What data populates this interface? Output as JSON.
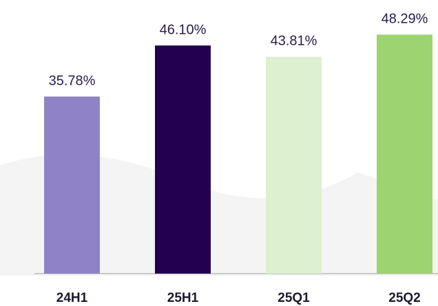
{
  "chart_data": {
    "type": "bar",
    "categories": [
      "24H1",
      "25H1",
      "25Q1",
      "25Q2"
    ],
    "values": [
      35.78,
      46.1,
      43.81,
      48.29
    ],
    "value_labels": [
      "35.78%",
      "46.10%",
      "43.81%",
      "48.29%"
    ],
    "colors": [
      "#8f83c6",
      "#240050",
      "#ddf0cf",
      "#9ed46f"
    ]
  }
}
